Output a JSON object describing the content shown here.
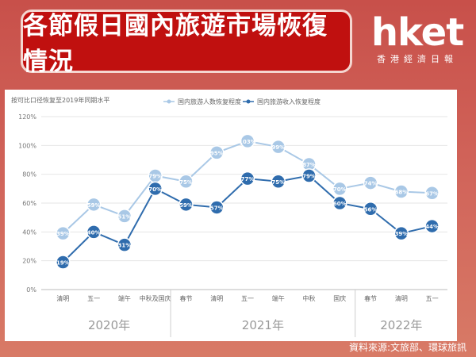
{
  "header": {
    "title": "各節假日國內旅遊市場恢復情況",
    "brand_name": "hket",
    "brand_subtitle": "香港經濟日報"
  },
  "source_note": "資料來源:文旅部、環球旅訊",
  "colors": {
    "background": "#cc5a50",
    "title_bg": "#c0100f",
    "series_trips": "#a9c8e6",
    "series_revenue": "#2f6cad"
  },
  "chart_data": {
    "type": "line",
    "ylabel": "按可比口径恢复至2019年同期水平",
    "ylim": [
      0,
      120
    ],
    "yticks": [
      0,
      20,
      40,
      60,
      80,
      100,
      120
    ],
    "ytick_labels": [
      "0%",
      "20%",
      "40%",
      "60%",
      "80%",
      "100%",
      "120%"
    ],
    "grid": true,
    "legend_position": "top",
    "categories": [
      "清明",
      "五一",
      "端午",
      "中秋及国庆",
      "春节",
      "清明",
      "五一",
      "端午",
      "中秋",
      "国庆",
      "春节",
      "清明",
      "五一"
    ],
    "groups": [
      {
        "label": "2020年",
        "start": 0,
        "end": 3
      },
      {
        "label": "2021年",
        "start": 4,
        "end": 9
      },
      {
        "label": "2022年",
        "start": 10,
        "end": 12
      }
    ],
    "series": [
      {
        "name": "国内旅游人数恢复程度",
        "color": "#a9c8e6",
        "values": [
          39,
          59,
          51,
          79,
          75,
          95,
          103,
          99,
          87,
          70,
          74,
          68,
          67
        ]
      },
      {
        "name": "国内旅游收入恢复程度",
        "color": "#2f6cad",
        "values": [
          19,
          40,
          31,
          70,
          59,
          57,
          77,
          75,
          79,
          60,
          56,
          39,
          44
        ]
      }
    ]
  }
}
